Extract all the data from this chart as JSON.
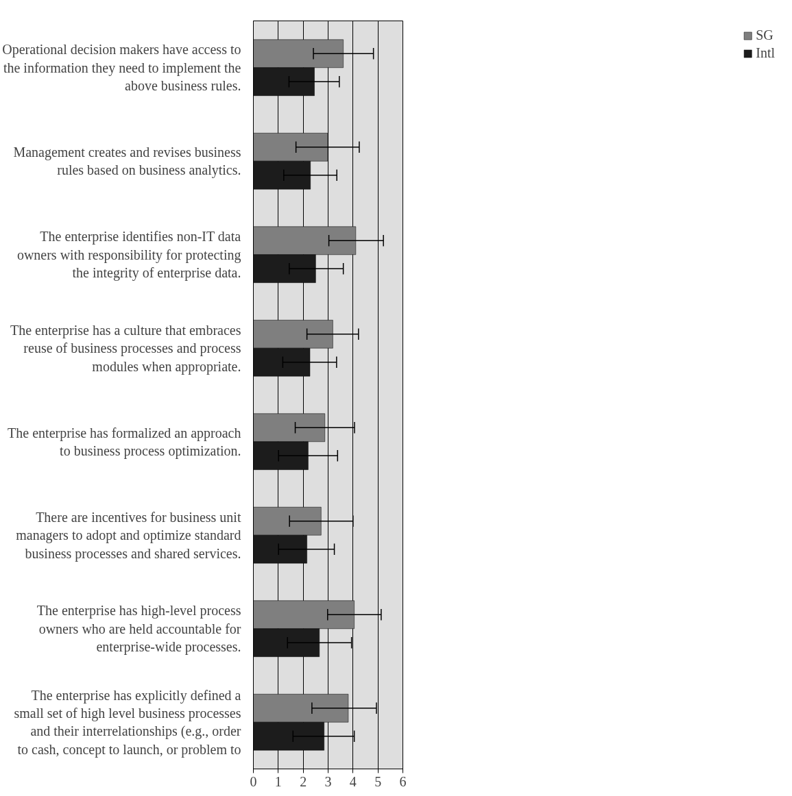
{
  "chart_data": {
    "type": "bar",
    "orientation": "horizontal",
    "categories": [
      "Operational decision makers have access to the information they need to implement the above business rules.",
      "Management creates and revises business rules based on business analytics.",
      "The enterprise identifies non-IT data owners with responsibility for protecting the integrity of enterprise data.",
      "The enterprise has a culture that embraces reuse of business processes and process modules when appropriate.",
      "The enterprise has formalized an approach to business process optimization.",
      "There are incentives for business unit managers to adopt and optimize standard business processes and shared services.",
      "The enterprise has high-level process owners who are held accountable for enterprise-wide processes.",
      "The enterprise has explicitly defined a small set of high level business processes and their interrelationships (e.g., order to cash, concept to launch, or problem to"
    ],
    "series": [
      {
        "name": "SG",
        "color": "#7f7f7f",
        "values": [
          3.61,
          2.98,
          4.11,
          3.19,
          2.87,
          2.72,
          4.05,
          3.81
        ],
        "errors": [
          [
            2.41,
            4.82
          ],
          [
            1.71,
            4.25
          ],
          [
            3.03,
            5.22
          ],
          [
            2.15,
            4.22
          ],
          [
            1.68,
            4.06
          ],
          [
            1.45,
            4.0
          ],
          [
            2.98,
            5.13
          ],
          [
            2.35,
            4.94
          ]
        ]
      },
      {
        "name": "Intl",
        "color": "#1c1c1c",
        "values": [
          2.45,
          2.29,
          2.5,
          2.27,
          2.2,
          2.15,
          2.65,
          2.84
        ],
        "errors": [
          [
            1.43,
            3.45
          ],
          [
            1.22,
            3.35
          ],
          [
            1.44,
            3.61
          ],
          [
            1.18,
            3.34
          ],
          [
            1.01,
            3.38
          ],
          [
            1.01,
            3.25
          ],
          [
            1.37,
            3.94
          ],
          [
            1.59,
            4.05
          ]
        ]
      }
    ],
    "xlim": [
      0,
      6
    ],
    "xticks": [
      0,
      1,
      2,
      3,
      4,
      5,
      6
    ],
    "grid": "x",
    "legend": "right"
  }
}
